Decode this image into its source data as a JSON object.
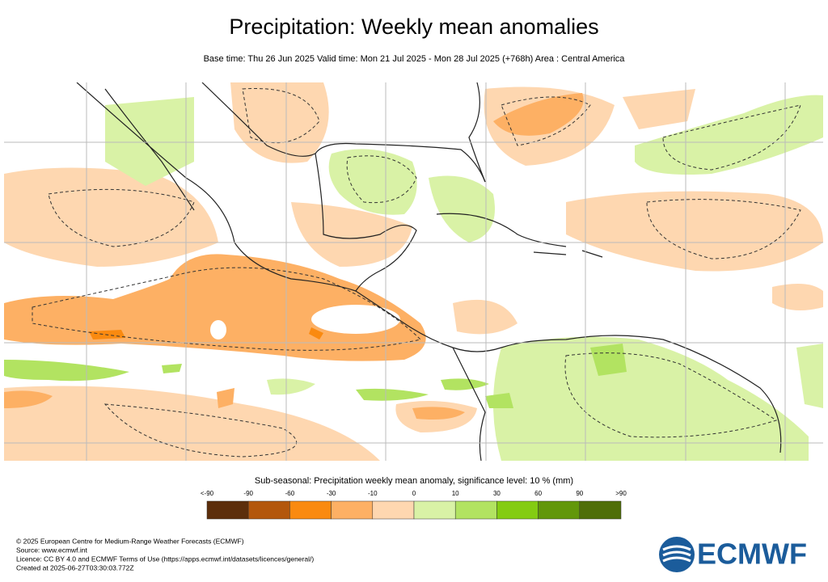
{
  "header": {
    "title": "Precipitation: Weekly mean anomalies",
    "subtitle": "Base time: Thu 26 Jun 2025 Valid time: Mon 21 Jul 2025 - Mon 28 Jul 2025 (+768h) Area : Central America"
  },
  "legend": {
    "title": "Sub-seasonal: Precipitation weekly mean anomaly, significance level: 10 % (mm)",
    "labels": [
      "<-90",
      "-90",
      "-60",
      "-30",
      "-10",
      "0",
      "10",
      "30",
      "60",
      "90",
      ">90"
    ],
    "colors": [
      "#5c2e0b",
      "#b3570c",
      "#fa8a10",
      "#fdb064",
      "#fed7b0",
      "#d9f2a6",
      "#b2e361",
      "#84cc12",
      "#62970a",
      "#4f6e08"
    ]
  },
  "footer": {
    "lines": [
      "© 2025 European Centre for Medium-Range Weather Forecasts (ECMWF)",
      "Source: www.ecmwf.int",
      "Licence: CC BY 4.0 and ECMWF Terms of Use (https://apps.ecmwf.int/datasets/licences/general/)",
      "Created at 2025-06-27T03:30:03.772Z"
    ],
    "logo": "ECMWF"
  }
}
